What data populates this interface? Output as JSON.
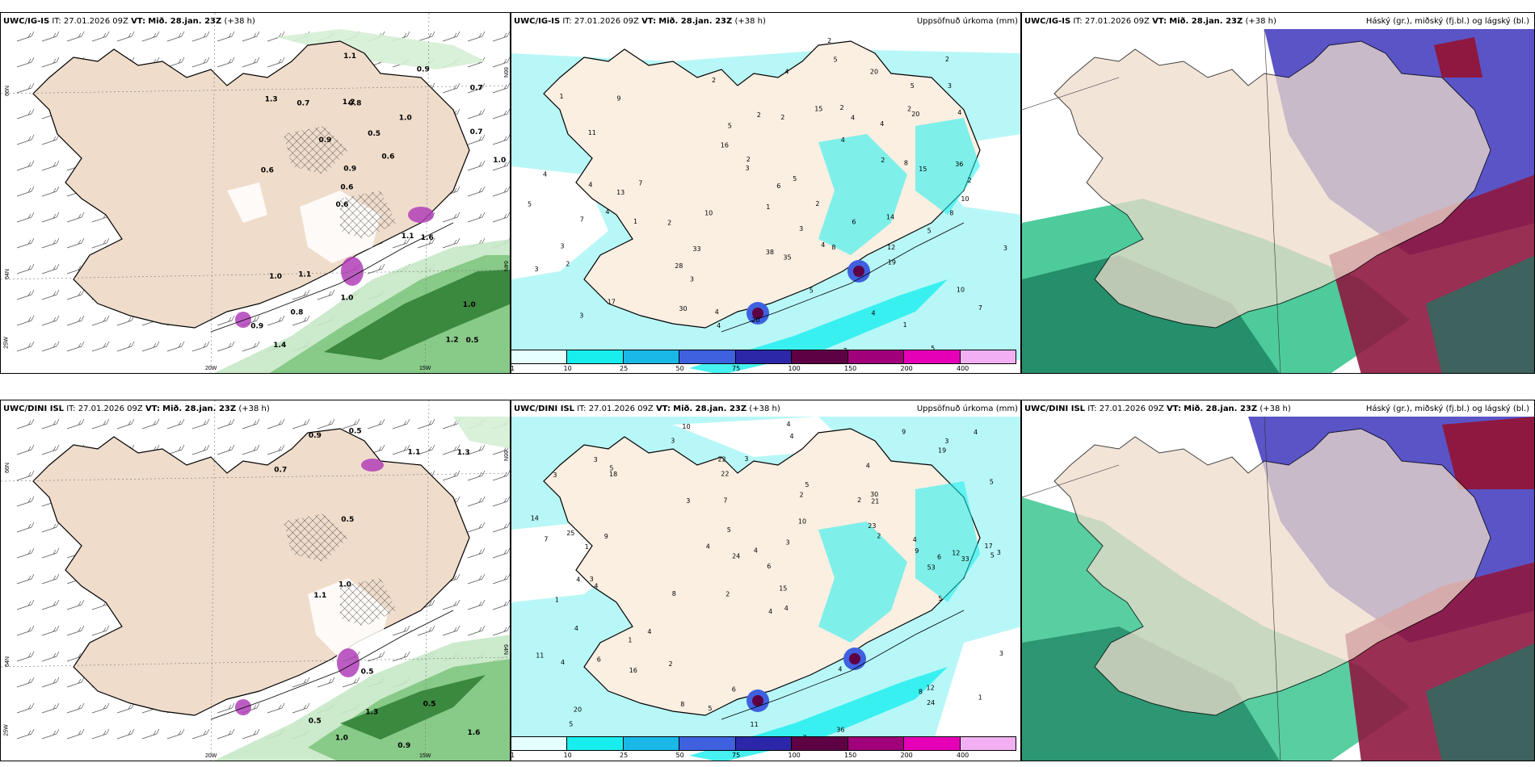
{
  "rows": [
    {
      "model": "UWC/IG-IS",
      "it": "IT: 27.01.2026 09Z",
      "vt_label": "VT:",
      "vt": "Mið. 28.jan. 23Z",
      "lead": "(+38 h)"
    },
    {
      "model": "UWC/DINI ISL",
      "it": "IT: 27.01.2026 09Z",
      "vt_label": "VT:",
      "vt": "Mið. 28.jan. 23Z",
      "lead": "(+38 h)"
    }
  ],
  "precip_title": "Uppsöfnuð úrkoma (mm)",
  "cloud_title": "Háský (gr.), miðský (fj.bl.) og lágský (bl.)",
  "legend": {
    "ticks": [
      "1",
      "10",
      "25",
      "50",
      "75",
      "100",
      "150",
      "200",
      "400"
    ],
    "colors": [
      "#e6ffff",
      "#19eeee",
      "#1ab8e6",
      "#3f61e0",
      "#2b27a8",
      "#5e0044",
      "#a0007a",
      "#e500b8",
      "#f2b0f2"
    ]
  },
  "axis_labels": {
    "lat_top": "66N",
    "lat_mid": "64N",
    "lat_bot": "25W",
    "lon_left": "20W",
    "lon_right": "15W",
    "lat_right_top": "66N",
    "lat_right_mid": "64N"
  },
  "wind_labels_top": [
    "0.5",
    "0.6",
    "0.7",
    "0.6",
    "1.0",
    "1.4",
    "1.2",
    "0.5",
    "1.0",
    "0.9",
    "0.9",
    "0.8",
    "0.8",
    "0.6",
    "1.6",
    "1.3",
    "1.1",
    "1.0",
    "1.1",
    "0.7",
    "0.6",
    "1.0",
    "0.9",
    "0.7",
    "0.9",
    "1.1",
    "1.2",
    "1.0"
  ],
  "wind_labels_bottom": [
    "1.0",
    "0.9",
    "0.5",
    "0.5",
    "0.9",
    "0.7",
    "1.1",
    "1.6",
    "0.5",
    "0.5",
    "1.3",
    "1.3",
    "1.0",
    "0.5",
    "1.1"
  ],
  "precip_labels_top": [
    "5",
    "4",
    "4",
    "1",
    "10",
    "11",
    "17",
    "2",
    "4",
    "2",
    "4",
    "1",
    "3",
    "2",
    "2",
    "2",
    "14",
    "6",
    "4",
    "3",
    "2",
    "2",
    "8",
    "3",
    "10",
    "4",
    "1",
    "1",
    "3",
    "3",
    "8",
    "7",
    "28",
    "2",
    "5",
    "5",
    "8",
    "4",
    "5",
    "7",
    "33",
    "35",
    "30",
    "2",
    "10",
    "13",
    "4",
    "5",
    "15",
    "38",
    "6",
    "36",
    "12",
    "15",
    "16",
    "5",
    "4",
    "2",
    "3",
    "2",
    "4",
    "2",
    "9",
    "4",
    "3",
    "3",
    "7",
    "5",
    "20",
    "20",
    "19",
    "20",
    "5",
    "7",
    "4",
    "2"
  ],
  "precip_labels_bottom": [
    "10",
    "4",
    "5",
    "2",
    "4",
    "3",
    "3",
    "2",
    "1",
    "2",
    "6",
    "5",
    "3",
    "8",
    "8",
    "7",
    "6",
    "9",
    "2",
    "1",
    "1",
    "4",
    "3",
    "12",
    "11",
    "25",
    "24",
    "9",
    "12",
    "4",
    "8",
    "5",
    "6",
    "4",
    "4",
    "3",
    "4",
    "5",
    "4",
    "3",
    "20",
    "42",
    "36",
    "3",
    "11",
    "21",
    "24",
    "30",
    "14",
    "15",
    "22",
    "53",
    "3",
    "19",
    "4",
    "16",
    "5",
    "4",
    "3",
    "7",
    "1",
    "5",
    "5",
    "2",
    "4",
    "7",
    "6",
    "4",
    "3",
    "5",
    "4",
    "22",
    "17",
    "23",
    "10",
    "9",
    "8",
    "18",
    "33",
    "4",
    "4"
  ]
}
